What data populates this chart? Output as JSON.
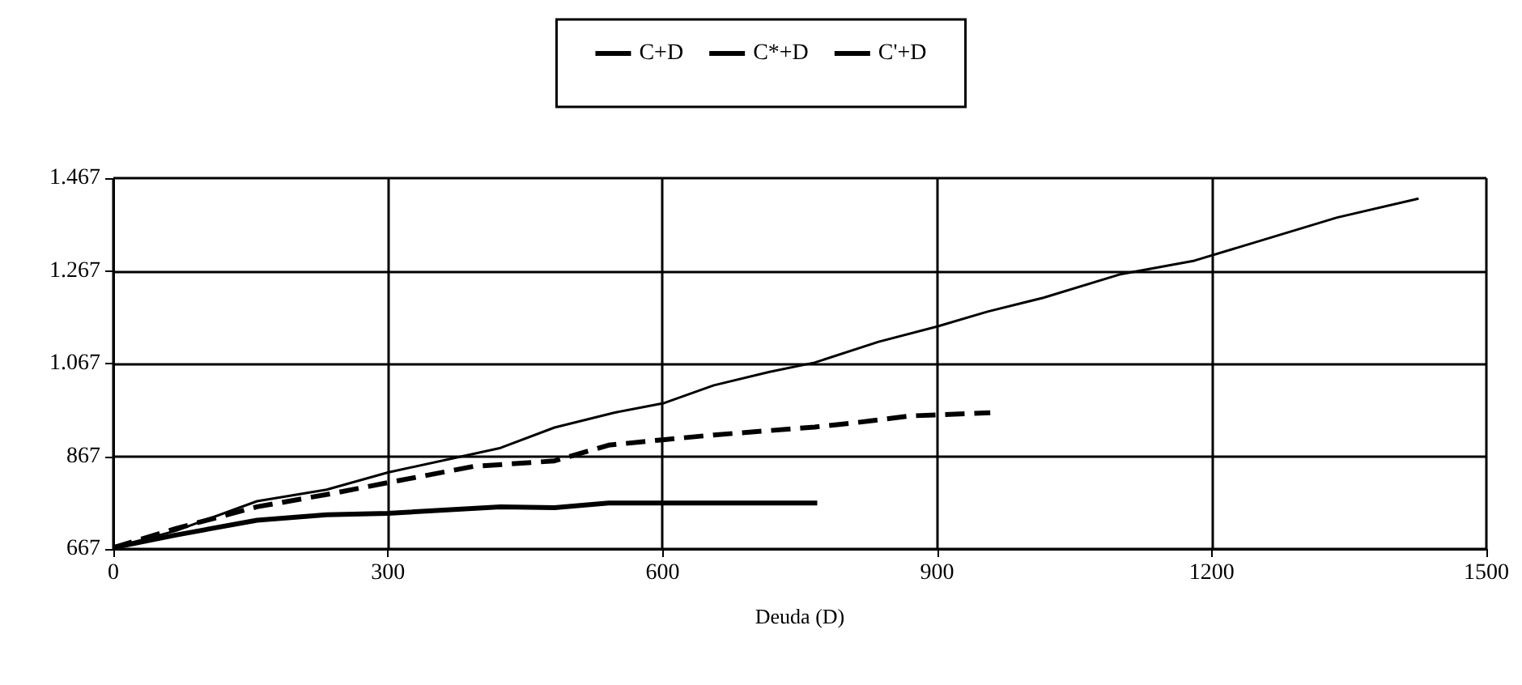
{
  "chart_data": {
    "type": "line",
    "xlabel": "Deuda (D)",
    "xlim": [
      0,
      1500
    ],
    "xticks": [
      0,
      300,
      600,
      900,
      1200,
      1500
    ],
    "ylim": [
      667,
      1467
    ],
    "yticks": [
      667,
      867,
      {
        "value": 1067,
        "label": "1.067"
      },
      {
        "value": 1267,
        "label": "1.267"
      },
      {
        "value": 1467,
        "label": "1.467"
      }
    ],
    "grid": true,
    "legend": "top",
    "marker": "none",
    "series": [
      {
        "name": "C+D",
        "color": "#000000",
        "line_style": "solid",
        "x": [
          0,
          68,
          157,
          233,
          300,
          423,
          482,
          547,
          602,
          656,
          717,
          766,
          836,
          900,
          955,
          1016,
          1099,
          1181,
          1337,
          1426
        ],
        "values": [
          670,
          706,
          770,
          795,
          832,
          885,
          929,
          961,
          982,
          1020,
          1049,
          1069,
          1114,
          1147,
          1179,
          1209,
          1259,
          1289,
          1382,
          1423
        ]
      },
      {
        "name": "C*+D",
        "color": "#000000",
        "line_style": "solid",
        "x": [
          0,
          68,
          157,
          233,
          300,
          423,
          482,
          541,
          769
        ],
        "values": [
          670,
          697,
          729,
          741,
          744,
          758,
          756,
          766,
          766
        ]
      },
      {
        "name": "C'+D",
        "color": "#000000",
        "line_style": "dashed",
        "x": [
          0,
          68,
          157,
          240,
          300,
          393,
          482,
          541,
          602,
          656,
          766,
          809,
          870,
          958
        ],
        "values": [
          670,
          711,
          758,
          787,
          810,
          845,
          857,
          891,
          903,
          913,
          930,
          939,
          954,
          961
        ]
      }
    ]
  }
}
